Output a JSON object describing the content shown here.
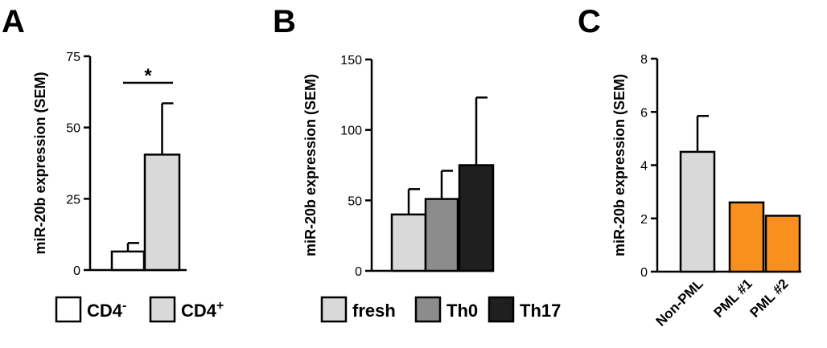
{
  "chart_data": [
    {
      "type": "bar",
      "panel": "A",
      "ylabel": "miR-20b expression (SEM)",
      "ylim": [
        0,
        75
      ],
      "yticks": [
        0,
        25,
        50,
        75
      ],
      "categories": [
        "CD4-",
        "CD4+"
      ],
      "values": [
        6.5,
        40.5
      ],
      "errors": [
        3.0,
        18.0
      ],
      "colors": [
        "#ffffff",
        "#d9d9d9"
      ],
      "significance": "*",
      "legend": [
        {
          "base": "CD4",
          "sup": "-",
          "color": "#ffffff"
        },
        {
          "base": "CD4",
          "sup": "+",
          "color": "#d9d9d9"
        }
      ]
    },
    {
      "type": "bar",
      "panel": "B",
      "ylabel": "miR-20b expression (SEM)",
      "ylim": [
        0,
        150
      ],
      "yticks": [
        0,
        50,
        100,
        150
      ],
      "categories": [
        "fresh",
        "Th0",
        "Th17"
      ],
      "values": [
        40,
        51,
        75
      ],
      "errors": [
        18,
        20,
        48
      ],
      "colors": [
        "#d9d9d9",
        "#8c8c8c",
        "#1f1f1f"
      ],
      "legend": [
        {
          "base": "fresh",
          "sup": "",
          "color": "#d9d9d9"
        },
        {
          "base": "Th0",
          "sup": "",
          "color": "#8c8c8c"
        },
        {
          "base": "Th17",
          "sup": "",
          "color": "#1f1f1f"
        }
      ]
    },
    {
      "type": "bar",
      "panel": "C",
      "ylabel": "miR-20b expression (SEM)",
      "ylim": [
        0,
        8
      ],
      "yticks": [
        0,
        2,
        4,
        6,
        8
      ],
      "categories": [
        "Non-PML",
        "PML #1",
        "PML #2"
      ],
      "values": [
        4.5,
        2.6,
        2.1
      ],
      "errors": [
        1.35,
        0,
        0
      ],
      "colors": [
        "#d9d9d9",
        "#f7901e",
        "#f7901e"
      ]
    }
  ]
}
